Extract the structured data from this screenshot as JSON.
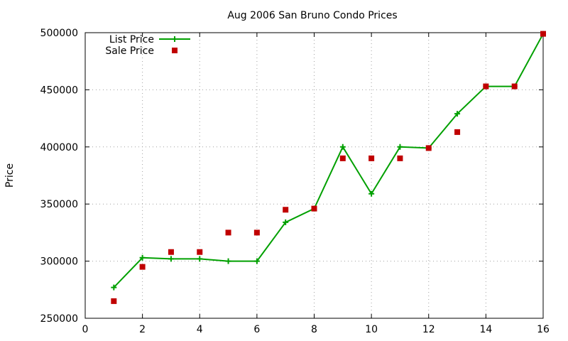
{
  "chart_data": {
    "type": "line",
    "title": "Aug 2006 San Bruno Condo Prices",
    "xlabel": "",
    "ylabel": "Price",
    "xlim": [
      0,
      16
    ],
    "ylim": [
      250000,
      500000
    ],
    "xticks": [
      0,
      2,
      4,
      6,
      8,
      10,
      12,
      14,
      16
    ],
    "yticks": [
      250000,
      300000,
      350000,
      400000,
      450000,
      500000
    ],
    "grid": true,
    "legend_position": "top-left",
    "series": [
      {
        "name": "List Price",
        "style": "linespoints",
        "marker": "plus",
        "color": "#00a000",
        "x": [
          1,
          2,
          3,
          4,
          5,
          6,
          7,
          8,
          9,
          10,
          11,
          12,
          13,
          14,
          15,
          16
        ],
        "y": [
          277000,
          303000,
          302000,
          302000,
          300000,
          300000,
          334000,
          346000,
          400000,
          359000,
          400000,
          399000,
          429000,
          453000,
          453000,
          499000
        ]
      },
      {
        "name": "Sale Price",
        "style": "points",
        "marker": "square",
        "color": "#c00000",
        "x": [
          1,
          2,
          3,
          4,
          5,
          6,
          7,
          8,
          9,
          10,
          11,
          12,
          13,
          14,
          15,
          16
        ],
        "y": [
          265000,
          295000,
          308000,
          308000,
          325000,
          325000,
          345000,
          346000,
          390000,
          390000,
          390000,
          399000,
          413000,
          453000,
          453000,
          499000
        ]
      }
    ]
  }
}
